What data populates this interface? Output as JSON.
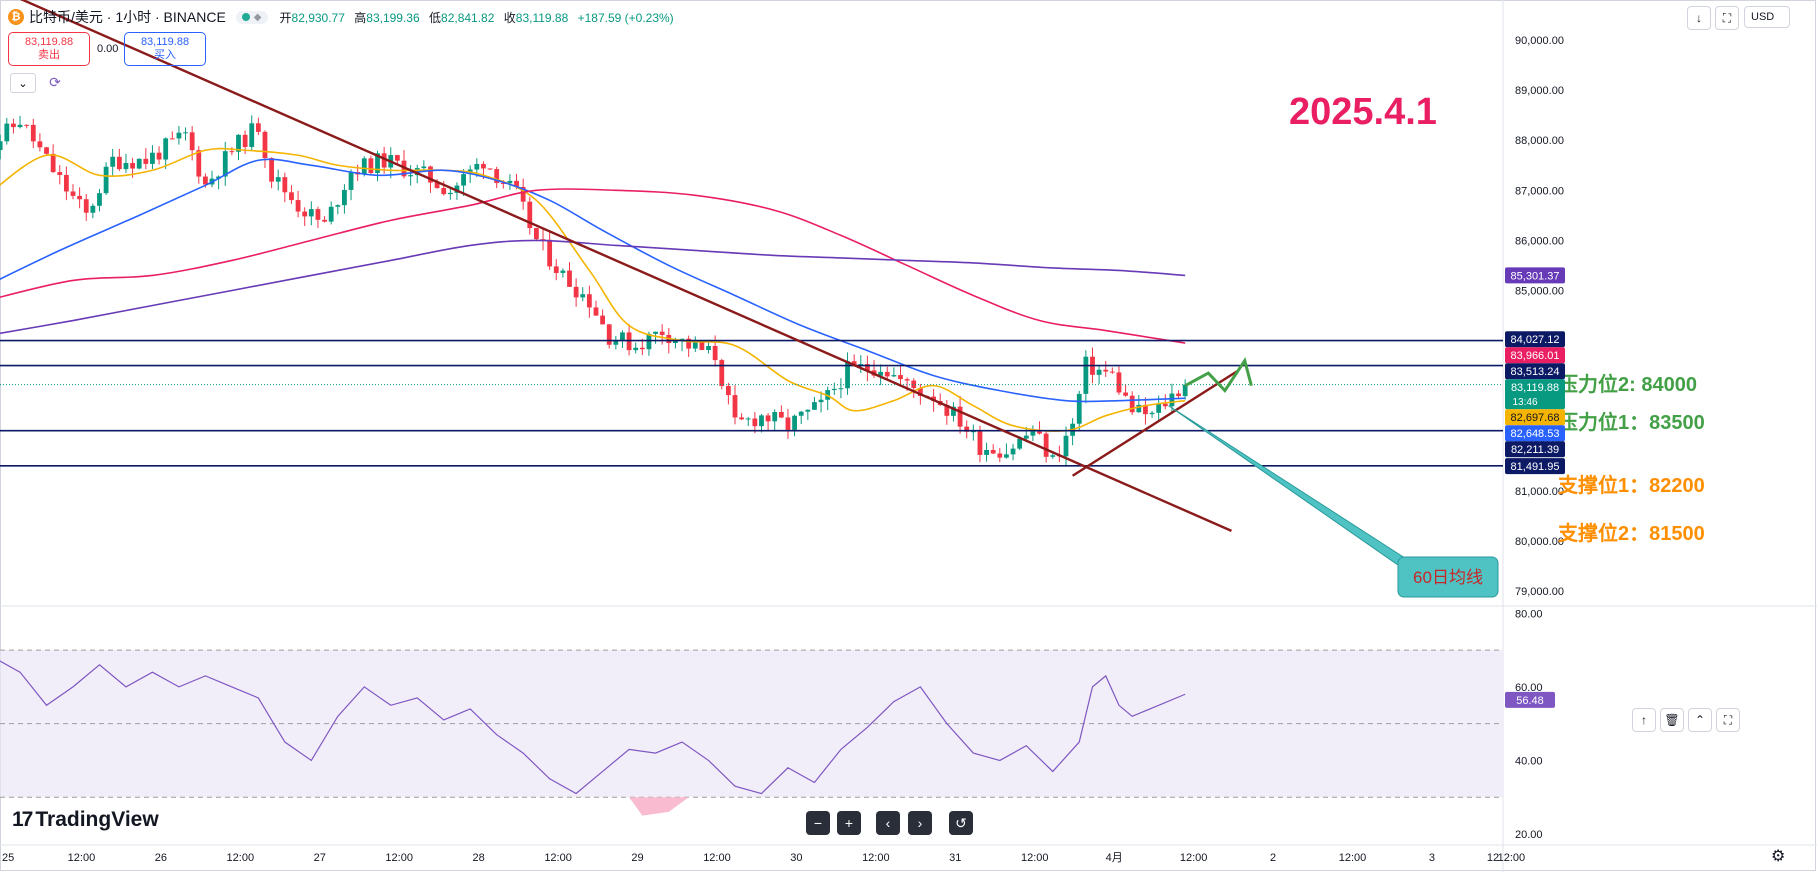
{
  "header": {
    "symbol": "比特币/美元 · 1小时 · BINANCE",
    "coin_glyph": "₿",
    "open_label": "开",
    "open": "82,930.77",
    "high_label": "高",
    "high": "83,199.36",
    "low_label": "低",
    "low": "82,841.82",
    "close_label": "收",
    "close": "83,119.88",
    "change": "+187.59 (+0.23%)"
  },
  "trade": {
    "sell_price": "83,119.88",
    "sell_label": "卖出",
    "spread": "0.00",
    "buy_price": "83,119.88",
    "buy_label": "买入"
  },
  "toolbar": {
    "currency": "USD",
    "down_icon": "↓",
    "fullscreen_icon": "⛶"
  },
  "pane_tools": {
    "up_icon": "↑",
    "delete_icon": "🗑",
    "collapse_icon": "⌃",
    "fullscreen_icon": "⛶"
  },
  "bottom_controls": {
    "zoom_out": "−",
    "zoom_in": "+",
    "scroll_left": "‹",
    "scroll_right": "›",
    "reset": "↺"
  },
  "branding": {
    "name": "TradingView",
    "logo": "17"
  },
  "colors": {
    "up": "#089981",
    "down": "#f23645",
    "ma_short": "#f5b400",
    "ma_mid": "#2962ff",
    "ma_long": "#e91e63",
    "ma_xlong": "#673ab7",
    "trend": "#8b1a1a",
    "level_line": "#0c1a66",
    "annot_green": "#43a047",
    "annot_orange": "#ff8f00",
    "annot_date": "#e91e63",
    "rsi": "#7e57c2",
    "callout": "#4fc3c4"
  },
  "chart_data": {
    "type": "candlestick",
    "title": "比特币/美元 · 1小时 · BINANCE",
    "price_axis": {
      "ylim": [
        78700,
        90800
      ],
      "ticks": [
        79000,
        80000,
        81000,
        82000,
        83000,
        84000,
        85000,
        86000,
        87000,
        88000,
        89000,
        90000
      ],
      "tick_labels": [
        "79,000.00",
        "80,000.00",
        "81,000.00",
        "82,000.00",
        "83,000.00",
        "84,000.00",
        "85,000.00",
        "86,000.00",
        "87,000.00",
        "88,000.00",
        "89,000.00",
        "90,000.00"
      ]
    },
    "time_axis": {
      "labels": [
        "25",
        "12:00",
        "26",
        "12:00",
        "27",
        "12:00",
        "28",
        "12:00",
        "29",
        "12:00",
        "30",
        "12:00",
        "31",
        "12:00",
        "4月",
        "12:00",
        "2",
        "12:00",
        "3",
        "12:00"
      ],
      "last_label": "12"
    },
    "anchors": [
      {
        "t": -3,
        "p": 87800
      },
      {
        "t": 2,
        "p": 88400
      },
      {
        "t": 8,
        "p": 87200
      },
      {
        "t": 12,
        "p": 86500
      },
      {
        "t": 16,
        "p": 87600
      },
      {
        "t": 21,
        "p": 87600
      },
      {
        "t": 27,
        "p": 88100
      },
      {
        "t": 30,
        "p": 87100
      },
      {
        "t": 34,
        "p": 87800
      },
      {
        "t": 38,
        "p": 88300
      },
      {
        "t": 40,
        "p": 87300
      },
      {
        "t": 44,
        "p": 86700
      },
      {
        "t": 48,
        "p": 86300
      },
      {
        "t": 52,
        "p": 87400
      },
      {
        "t": 57,
        "p": 87600
      },
      {
        "t": 63,
        "p": 87300
      },
      {
        "t": 67,
        "p": 87000
      },
      {
        "t": 72,
        "p": 87600
      },
      {
        "t": 77,
        "p": 86900
      },
      {
        "t": 80,
        "p": 86000
      },
      {
        "t": 84,
        "p": 85300
      },
      {
        "t": 88,
        "p": 84800
      },
      {
        "t": 91,
        "p": 84100
      },
      {
        "t": 95,
        "p": 83900
      },
      {
        "t": 99,
        "p": 84200
      },
      {
        "t": 103,
        "p": 83900
      },
      {
        "t": 107,
        "p": 83700
      },
      {
        "t": 110,
        "p": 82300
      },
      {
        "t": 114,
        "p": 82500
      },
      {
        "t": 118,
        "p": 82300
      },
      {
        "t": 123,
        "p": 82700
      },
      {
        "t": 127,
        "p": 83400
      },
      {
        "t": 132,
        "p": 83500
      },
      {
        "t": 136,
        "p": 83100
      },
      {
        "t": 140,
        "p": 82900
      },
      {
        "t": 144,
        "p": 82400
      },
      {
        "t": 147,
        "p": 81900
      },
      {
        "t": 151,
        "p": 81800
      },
      {
        "t": 155,
        "p": 82200
      },
      {
        "t": 158,
        "p": 81600
      },
      {
        "t": 161,
        "p": 82300
      },
      {
        "t": 163,
        "p": 83500
      },
      {
        "t": 167,
        "p": 83300
      },
      {
        "t": 170,
        "p": 82600
      },
      {
        "t": 173,
        "p": 82500
      },
      {
        "t": 176,
        "p": 82900
      },
      {
        "t": 178,
        "p": 83150
      }
    ],
    "candle_range": [
      -4,
      178
    ],
    "moving_averages": [
      {
        "name": "MA short",
        "color": "#f5b400",
        "points": [
          [
            -3,
            86900
          ],
          [
            6,
            87700
          ],
          [
            14,
            87300
          ],
          [
            22,
            87400
          ],
          [
            30,
            87800
          ],
          [
            36,
            87800
          ],
          [
            44,
            87700
          ],
          [
            50,
            87500
          ],
          [
            58,
            87400
          ],
          [
            66,
            87400
          ],
          [
            72,
            87300
          ],
          [
            80,
            86800
          ],
          [
            88,
            85400
          ],
          [
            94,
            84300
          ],
          [
            102,
            84000
          ],
          [
            110,
            83900
          ],
          [
            118,
            83200
          ],
          [
            124,
            82900
          ],
          [
            128,
            82600
          ],
          [
            134,
            82800
          ],
          [
            140,
            83100
          ],
          [
            146,
            82700
          ],
          [
            152,
            82300
          ],
          [
            160,
            82200
          ],
          [
            166,
            82500
          ],
          [
            172,
            82700
          ],
          [
            178,
            82800
          ]
        ]
      },
      {
        "name": "MA 60",
        "color": "#2962ff",
        "points": [
          [
            -3,
            85100
          ],
          [
            8,
            85800
          ],
          [
            20,
            86500
          ],
          [
            30,
            87100
          ],
          [
            38,
            87600
          ],
          [
            46,
            87500
          ],
          [
            56,
            87300
          ],
          [
            66,
            87400
          ],
          [
            74,
            87200
          ],
          [
            82,
            86800
          ],
          [
            90,
            86200
          ],
          [
            100,
            85500
          ],
          [
            110,
            84900
          ],
          [
            120,
            84300
          ],
          [
            130,
            83800
          ],
          [
            140,
            83300
          ],
          [
            150,
            83000
          ],
          [
            160,
            82800
          ],
          [
            168,
            82800
          ],
          [
            178,
            82850
          ]
        ]
      },
      {
        "name": "MA long",
        "color": "#e91e63",
        "points": [
          [
            -3,
            84800
          ],
          [
            10,
            85200
          ],
          [
            22,
            85300
          ],
          [
            34,
            85600
          ],
          [
            46,
            86000
          ],
          [
            58,
            86400
          ],
          [
            70,
            86700
          ],
          [
            80,
            87000
          ],
          [
            92,
            87000
          ],
          [
            104,
            86900
          ],
          [
            116,
            86600
          ],
          [
            126,
            86100
          ],
          [
            136,
            85500
          ],
          [
            146,
            84900
          ],
          [
            156,
            84400
          ],
          [
            166,
            84200
          ],
          [
            178,
            83950
          ]
        ]
      },
      {
        "name": "MA xlong",
        "color": "#673ab7",
        "points": [
          [
            -3,
            84100
          ],
          [
            10,
            84400
          ],
          [
            22,
            84700
          ],
          [
            34,
            85000
          ],
          [
            46,
            85300
          ],
          [
            58,
            85600
          ],
          [
            70,
            85900
          ],
          [
            80,
            86000
          ],
          [
            92,
            85900
          ],
          [
            104,
            85800
          ],
          [
            116,
            85700
          ],
          [
            126,
            85650
          ],
          [
            136,
            85600
          ],
          [
            146,
            85550
          ],
          [
            158,
            85450
          ],
          [
            168,
            85400
          ],
          [
            178,
            85300
          ]
        ]
      }
    ],
    "horizontal_levels": [
      84000,
      83500,
      82200,
      81500
    ],
    "price_markers": [
      {
        "label": "85,301.37",
        "value": 85301.37,
        "color": "#673ab7",
        "text_color": "#ffffff"
      },
      {
        "label": "84,027.12",
        "value": 84027.12,
        "color": "#0c1a66",
        "text_color": "#ffffff"
      },
      {
        "label": "83,966.01",
        "value": 83966.01,
        "color": "#e91e63",
        "text_color": "#ffffff"
      },
      {
        "label": "83,513.24",
        "value": 83513.24,
        "color": "#0c1a66",
        "text_color": "#ffffff"
      },
      {
        "label": "83,119.88",
        "value": 83119.88,
        "color": "#089981",
        "text_color": "#ffffff",
        "sub": "13:46"
      },
      {
        "label": "82,697.68",
        "value": 82697.68,
        "color": "#f5b400",
        "text_color": "#131722"
      },
      {
        "label": "82,648.53",
        "value": 82648.53,
        "color": "#2962ff",
        "text_color": "#ffffff"
      },
      {
        "label": "82,211.39",
        "value": 82211.39,
        "color": "#0c1a66",
        "text_color": "#ffffff"
      },
      {
        "label": "81,491.95",
        "value": 81491.95,
        "color": "#0c1a66",
        "text_color": "#ffffff"
      }
    ],
    "trend_lines": [
      {
        "from": [
          -1,
          91000
        ],
        "to": [
          185,
          80200
        ]
      },
      {
        "from": [
          161,
          81300
        ],
        "to": [
          186,
          83400
        ]
      }
    ],
    "annotations": {
      "date": "2025.4.1",
      "resistance_2": "压力位2: 84000",
      "resistance_1": "压力位1：83500",
      "support_1": "支撑位1：82200",
      "support_2": "支撑位2：81500",
      "callout": "60日均线"
    },
    "rsi": {
      "ylim": [
        17,
        82
      ],
      "ticks": [
        20,
        40,
        60,
        80
      ],
      "tick_labels": [
        "20.00",
        "40.00",
        "60.00",
        "80.00"
      ],
      "band": [
        30,
        70
      ],
      "mid": 50,
      "current": "56.48",
      "points": [
        [
          -3,
          69
        ],
        [
          2,
          64
        ],
        [
          6,
          55
        ],
        [
          10,
          60
        ],
        [
          14,
          66
        ],
        [
          18,
          60
        ],
        [
          22,
          64
        ],
        [
          26,
          60
        ],
        [
          30,
          63
        ],
        [
          34,
          60
        ],
        [
          38,
          57
        ],
        [
          42,
          45
        ],
        [
          46,
          40
        ],
        [
          50,
          52
        ],
        [
          54,
          60
        ],
        [
          58,
          55
        ],
        [
          62,
          57
        ],
        [
          66,
          51
        ],
        [
          70,
          54
        ],
        [
          74,
          47
        ],
        [
          78,
          42
        ],
        [
          82,
          35
        ],
        [
          86,
          31
        ],
        [
          90,
          37
        ],
        [
          94,
          43
        ],
        [
          98,
          42
        ],
        [
          102,
          45
        ],
        [
          106,
          40
        ],
        [
          110,
          33
        ],
        [
          114,
          31
        ],
        [
          118,
          38
        ],
        [
          122,
          34
        ],
        [
          126,
          43
        ],
        [
          130,
          49
        ],
        [
          134,
          56
        ],
        [
          138,
          60
        ],
        [
          142,
          50
        ],
        [
          146,
          42
        ],
        [
          150,
          40
        ],
        [
          154,
          44
        ],
        [
          158,
          37
        ],
        [
          162,
          45
        ],
        [
          164,
          60
        ],
        [
          166,
          63
        ],
        [
          168,
          55
        ],
        [
          170,
          52
        ],
        [
          174,
          55
        ],
        [
          178,
          58
        ]
      ]
    }
  }
}
